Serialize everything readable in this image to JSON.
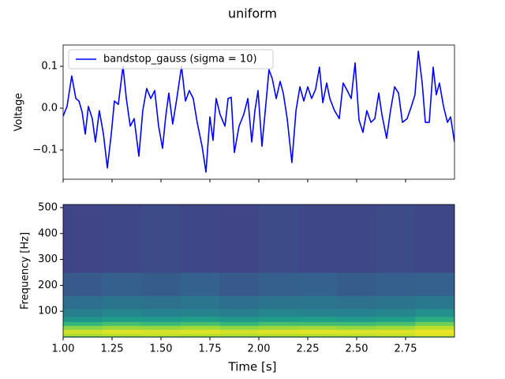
{
  "title": "uniform",
  "chart_data": [
    {
      "type": "line",
      "ylabel": "Voltage",
      "x": [
        1.0,
        1.02,
        1.044,
        1.065,
        1.081,
        1.097,
        1.113,
        1.129,
        1.149,
        1.165,
        1.185,
        1.206,
        1.226,
        1.246,
        1.262,
        1.282,
        1.306,
        1.323,
        1.343,
        1.363,
        1.387,
        1.407,
        1.427,
        1.448,
        1.468,
        1.488,
        1.508,
        1.524,
        1.54,
        1.56,
        1.581,
        1.605,
        1.625,
        1.645,
        1.665,
        1.685,
        1.71,
        1.73,
        1.75,
        1.766,
        1.782,
        1.802,
        1.827,
        1.843,
        1.859,
        1.875,
        1.899,
        1.923,
        1.944,
        1.964,
        1.98,
        1.996,
        2.016,
        2.036,
        2.052,
        2.069,
        2.089,
        2.109,
        2.125,
        2.145,
        2.169,
        2.19,
        2.21,
        2.23,
        2.25,
        2.27,
        2.29,
        2.31,
        2.327,
        2.347,
        2.363,
        2.387,
        2.411,
        2.431,
        2.452,
        2.472,
        2.492,
        2.512,
        2.532,
        2.552,
        2.573,
        2.593,
        2.613,
        2.629,
        2.653,
        2.673,
        2.694,
        2.714,
        2.734,
        2.758,
        2.778,
        2.798,
        2.815,
        2.835,
        2.851,
        2.871,
        2.891,
        2.907,
        2.923,
        2.944,
        2.964,
        2.98,
        3.0
      ],
      "series": [
        {
          "name": "bandstop_gauss (sigma = 10)",
          "color": "#0000ff",
          "values": [
            -0.019,
            0.004,
            0.077,
            0.023,
            0.017,
            -0.009,
            -0.062,
            0.004,
            -0.025,
            -0.081,
            -0.006,
            -0.062,
            -0.143,
            -0.062,
            0.017,
            0.009,
            0.1,
            0.023,
            -0.043,
            -0.025,
            -0.115,
            -0.006,
            0.047,
            0.023,
            0.042,
            -0.043,
            -0.096,
            -0.021,
            0.036,
            -0.038,
            0.023,
            0.1,
            0.017,
            0.042,
            0.023,
            -0.034,
            -0.091,
            -0.153,
            -0.021,
            -0.077,
            0.023,
            -0.015,
            -0.043,
            0.023,
            0.026,
            -0.106,
            -0.043,
            -0.015,
            0.023,
            -0.081,
            -0.006,
            0.042,
            -0.091,
            0.009,
            0.092,
            0.07,
            0.023,
            0.064,
            0.036,
            -0.025,
            -0.13,
            -0.006,
            0.051,
            0.017,
            0.051,
            0.023,
            0.045,
            0.098,
            0.013,
            0.06,
            0.023,
            -0.006,
            -0.025,
            0.06,
            0.042,
            0.023,
            0.108,
            -0.028,
            -0.058,
            -0.006,
            -0.034,
            -0.025,
            0.036,
            -0.015,
            -0.072,
            -0.006,
            0.051,
            0.036,
            -0.034,
            -0.025,
            0.002,
            0.032,
            0.136,
            0.06,
            -0.034,
            -0.034,
            0.098,
            0.032,
            0.06,
            0.004,
            -0.034,
            -0.021,
            -0.081
          ]
        }
      ],
      "xlim": [
        1.0,
        3.0
      ],
      "ylim": [
        -0.17,
        0.151
      ],
      "yticks": [
        {
          "value": 0.1,
          "label": "0.1"
        },
        {
          "value": 0,
          "label": "0.0"
        },
        {
          "value": -0.1,
          "label": "−0.1"
        }
      ],
      "legend": "upper left"
    },
    {
      "type": "heatmap",
      "xlabel": "Time [s]",
      "ylabel": "Frequency [Hz]",
      "colormap": "viridis",
      "zlim": [
        0,
        1
      ],
      "xbins": [
        1.0,
        1.2,
        1.4,
        1.6,
        1.8,
        2.0,
        2.2,
        2.4,
        2.6,
        2.8,
        3.0
      ],
      "ybins": [
        0,
        5,
        15,
        30,
        45,
        60,
        80,
        110,
        160,
        250,
        512
      ],
      "values": [
        [
          0.68,
          0.7,
          0.72,
          0.7,
          0.69,
          0.7,
          0.71,
          0.7,
          0.72,
          0.74
        ],
        [
          0.88,
          0.9,
          0.91,
          0.9,
          0.89,
          0.9,
          0.9,
          0.91,
          0.92,
          0.95
        ],
        [
          0.93,
          0.95,
          0.94,
          0.95,
          0.94,
          0.95,
          0.96,
          0.95,
          0.95,
          0.97
        ],
        [
          0.82,
          0.85,
          0.84,
          0.86,
          0.83,
          0.85,
          0.86,
          0.84,
          0.86,
          0.9
        ],
        [
          0.66,
          0.7,
          0.68,
          0.71,
          0.67,
          0.7,
          0.7,
          0.69,
          0.71,
          0.78
        ],
        [
          0.52,
          0.55,
          0.54,
          0.56,
          0.53,
          0.55,
          0.56,
          0.54,
          0.56,
          0.62
        ],
        [
          0.43,
          0.46,
          0.44,
          0.45,
          0.43,
          0.46,
          0.45,
          0.44,
          0.46,
          0.5
        ],
        [
          0.36,
          0.38,
          0.37,
          0.39,
          0.36,
          0.38,
          0.39,
          0.37,
          0.38,
          0.4
        ],
        [
          0.28,
          0.3,
          0.29,
          0.31,
          0.28,
          0.3,
          0.31,
          0.29,
          0.3,
          0.31
        ],
        [
          0.21,
          0.22,
          0.23,
          0.22,
          0.21,
          0.23,
          0.22,
          0.22,
          0.23,
          0.22
        ]
      ],
      "xlim": [
        1.0,
        3.0
      ],
      "ylim": [
        0,
        512
      ],
      "xticks": [
        {
          "value": 1.0,
          "label": "1.00"
        },
        {
          "value": 1.25,
          "label": "1.25"
        },
        {
          "value": 1.5,
          "label": "1.50"
        },
        {
          "value": 1.75,
          "label": "1.75"
        },
        {
          "value": 2.0,
          "label": "2.00"
        },
        {
          "value": 2.25,
          "label": "2.25"
        },
        {
          "value": 2.5,
          "label": "2.50"
        },
        {
          "value": 2.75,
          "label": "2.75"
        }
      ],
      "yticks": [
        100,
        200,
        300,
        400,
        500
      ]
    }
  ]
}
